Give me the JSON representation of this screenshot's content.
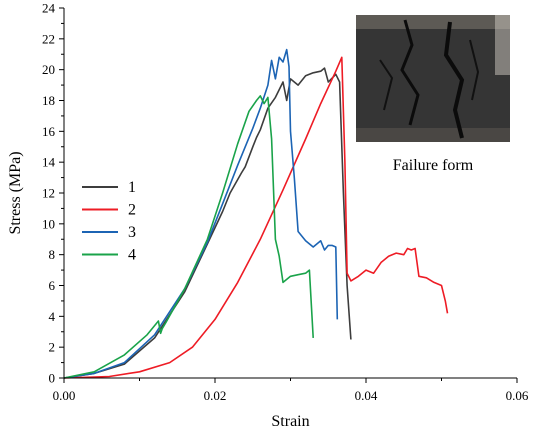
{
  "chart_data": {
    "type": "line",
    "xlabel": "Strain",
    "ylabel": "Stress (MPa)",
    "xlim": [
      0,
      0.06
    ],
    "ylim": [
      0,
      24
    ],
    "x_ticks": [
      "0.00",
      "0.02",
      "0.04",
      "0.06"
    ],
    "y_ticks": [
      "0",
      "2",
      "4",
      "6",
      "8",
      "10",
      "12",
      "14",
      "16",
      "18",
      "20",
      "22",
      "24"
    ],
    "legend_position": "left",
    "inset_caption": "Failure form",
    "series": [
      {
        "name": "1",
        "color": "#3d3d3d",
        "x": [
          0,
          0.004,
          0.008,
          0.012,
          0.016,
          0.019,
          0.021,
          0.022,
          0.0235,
          0.024,
          0.025,
          0.0255,
          0.026,
          0.027,
          0.028,
          0.029,
          0.0295,
          0.03,
          0.031,
          0.032,
          0.033,
          0.034,
          0.0345,
          0.035,
          0.036,
          0.0365,
          0.037,
          0.0375,
          0.038
        ],
        "y": [
          0,
          0.3,
          0.9,
          2.6,
          5.6,
          8.7,
          10.8,
          12.0,
          13.3,
          13.7,
          15.0,
          15.6,
          16.1,
          17.5,
          18.2,
          19.2,
          18.0,
          19.4,
          19.0,
          19.6,
          19.8,
          19.9,
          20.1,
          19.2,
          19.7,
          19.2,
          12.0,
          6.0,
          2.5
        ]
      },
      {
        "name": "2",
        "color": "#ee1c25",
        "x": [
          0,
          0.006,
          0.01,
          0.014,
          0.017,
          0.02,
          0.023,
          0.026,
          0.029,
          0.032,
          0.034,
          0.036,
          0.0368,
          0.0372,
          0.0375,
          0.038,
          0.039,
          0.04,
          0.041,
          0.042,
          0.043,
          0.044,
          0.045,
          0.0455,
          0.046,
          0.0465,
          0.047,
          0.048,
          0.049,
          0.05,
          0.0505,
          0.0508
        ],
        "y": [
          0,
          0.1,
          0.4,
          1.0,
          2.0,
          3.8,
          6.2,
          9.0,
          12.2,
          15.5,
          17.8,
          19.9,
          20.8,
          14.0,
          6.8,
          6.3,
          6.6,
          7.0,
          6.8,
          7.5,
          7.9,
          8.1,
          8.0,
          8.4,
          8.3,
          8.4,
          6.6,
          6.5,
          6.2,
          6.0,
          5.0,
          4.2
        ]
      },
      {
        "name": "3",
        "color": "#1c64b4",
        "x": [
          0,
          0.004,
          0.008,
          0.012,
          0.016,
          0.019,
          0.021,
          0.023,
          0.025,
          0.026,
          0.027,
          0.0275,
          0.028,
          0.0285,
          0.029,
          0.0295,
          0.0298,
          0.03,
          0.0305,
          0.031,
          0.032,
          0.033,
          0.034,
          0.0345,
          0.035,
          0.0355,
          0.036,
          0.0362
        ],
        "y": [
          0,
          0.3,
          1.0,
          2.8,
          5.8,
          8.8,
          11.3,
          13.8,
          16.2,
          17.5,
          19.0,
          20.6,
          19.4,
          20.8,
          20.5,
          21.3,
          20.2,
          16.0,
          13.0,
          9.5,
          8.9,
          8.5,
          8.9,
          8.3,
          8.6,
          8.6,
          8.5,
          3.8
        ]
      },
      {
        "name": "4",
        "color": "#1aa34a",
        "x": [
          0,
          0.004,
          0.008,
          0.011,
          0.012,
          0.0125,
          0.0128,
          0.013,
          0.0135,
          0.016,
          0.019,
          0.021,
          0.023,
          0.0245,
          0.0255,
          0.026,
          0.0265,
          0.027,
          0.0275,
          0.028,
          0.0285,
          0.029,
          0.03,
          0.031,
          0.032,
          0.0325,
          0.033
        ],
        "y": [
          0,
          0.4,
          1.5,
          2.8,
          3.4,
          3.7,
          2.9,
          3.2,
          3.6,
          5.8,
          9.0,
          12.0,
          15.2,
          17.3,
          18.0,
          18.3,
          17.8,
          18.2,
          15.5,
          9.0,
          7.9,
          6.2,
          6.6,
          6.7,
          6.8,
          7.0,
          2.6
        ]
      }
    ]
  }
}
